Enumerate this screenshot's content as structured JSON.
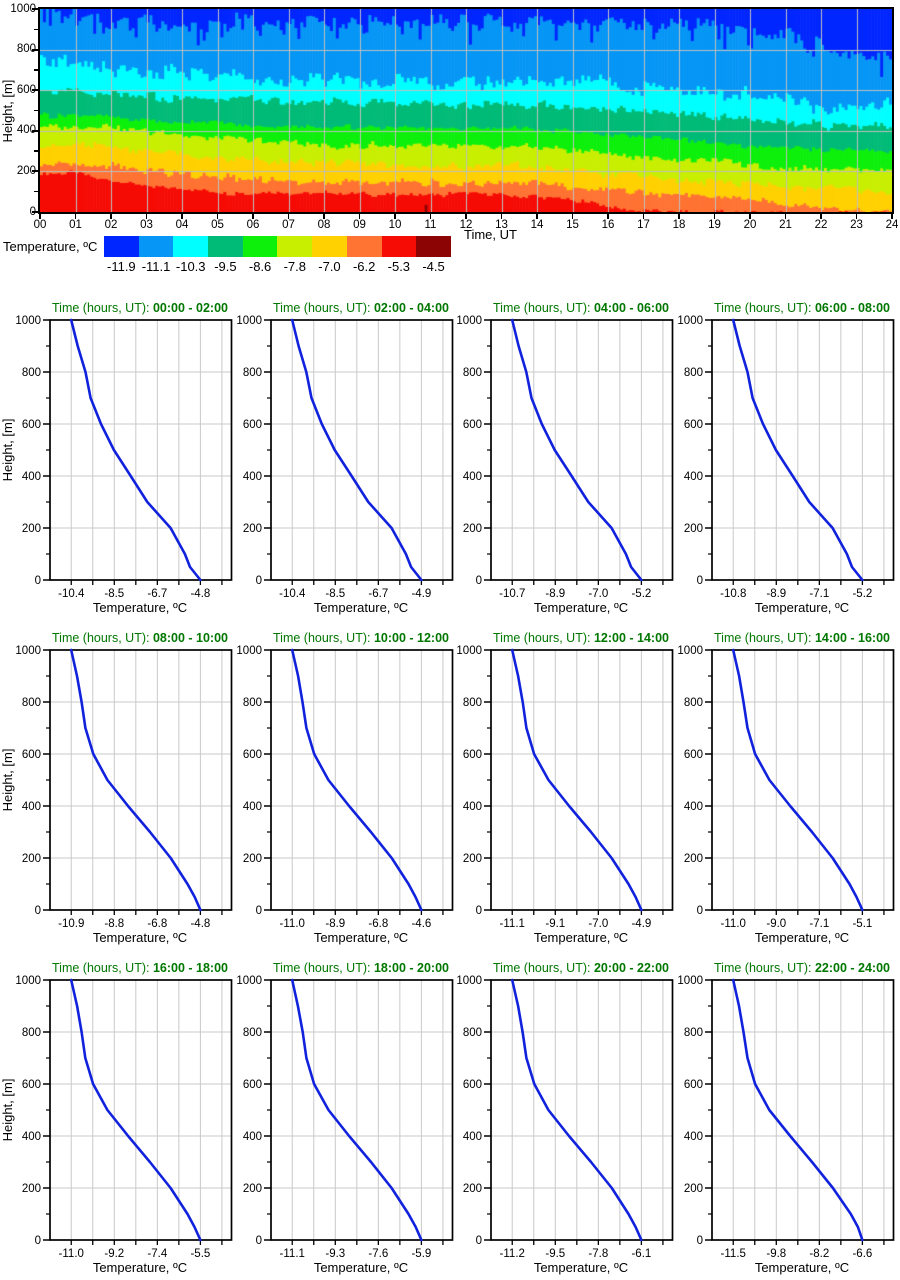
{
  "colors": {
    "profile_line": "#1122dd",
    "title_green": "#007700",
    "grid": "#c9c9c9",
    "axis": "#000000",
    "background": "#ffffff"
  },
  "shared": {
    "profile_title_prefix": "Time (hours, UT):",
    "profile_heights": [
      1000,
      900,
      800,
      700,
      600,
      500,
      400,
      300,
      200,
      100,
      50,
      0
    ],
    "profile_y_ticks": [
      "0",
      "200",
      "400",
      "600",
      "800",
      "1000"
    ]
  },
  "chart_data": [
    {
      "type": "heatmap",
      "xlabel": "Time, UT",
      "ylabel": "Height, [m]",
      "legend_title": "Temperature, ºC",
      "xlim": [
        0,
        24
      ],
      "ylim": [
        0,
        1000
      ],
      "x_ticks": [
        "00",
        "01",
        "02",
        "03",
        "04",
        "05",
        "06",
        "07",
        "08",
        "09",
        "10",
        "11",
        "12",
        "13",
        "14",
        "15",
        "16",
        "17",
        "18",
        "19",
        "20",
        "21",
        "22",
        "23",
        "24"
      ],
      "y_ticks": [
        "0",
        "200",
        "400",
        "600",
        "800",
        "1000"
      ],
      "legend_values": [
        "-11.9",
        "-11.1",
        "-10.3",
        "-9.5",
        "-8.6",
        "-7.8",
        "-7.0",
        "-6.2",
        "-5.3",
        "-4.5"
      ],
      "colors": [
        "#0026ff",
        "#0696f5",
        "#00ffff",
        "#00bb77",
        "#0cf00c",
        "#c8ee00",
        "#ffd100",
        "#ff7333",
        "#f60b05",
        "#8c0404"
      ],
      "isotherm_temps": [
        -6.2,
        -7.0,
        -7.8,
        -8.6,
        -9.5,
        -10.3,
        -11.1,
        -11.9
      ],
      "hours": [
        0,
        1,
        2,
        3,
        4,
        5,
        6,
        7,
        8,
        9,
        10,
        11,
        12,
        13,
        14,
        15,
        16,
        17,
        18,
        19,
        20,
        21,
        22,
        23,
        24
      ],
      "isotherm_heights_by_hour": [
        [
          200,
          195,
          155,
          130,
          110,
          100,
          90,
          95,
          95,
          90,
          90,
          88,
          90,
          85,
          80,
          60,
          30,
          5,
          0,
          0,
          0,
          0,
          0,
          0,
          0
        ],
        [
          240,
          235,
          230,
          205,
          185,
          175,
          165,
          155,
          150,
          150,
          150,
          148,
          145,
          148,
          150,
          120,
          110,
          95,
          88,
          75,
          60,
          45,
          20,
          8,
          2
        ],
        [
          335,
          330,
          330,
          305,
          290,
          270,
          255,
          250,
          245,
          242,
          240,
          235,
          230,
          230,
          230,
          205,
          190,
          175,
          160,
          150,
          140,
          130,
          120,
          112,
          105
        ],
        [
          420,
          420,
          420,
          400,
          380,
          365,
          350,
          340,
          332,
          330,
          330,
          325,
          320,
          320,
          320,
          305,
          290,
          275,
          260,
          248,
          235,
          225,
          215,
          210,
          205
        ],
        [
          480,
          475,
          470,
          455,
          445,
          437,
          430,
          425,
          420,
          420,
          420,
          415,
          410,
          410,
          410,
          400,
          390,
          375,
          360,
          345,
          330,
          320,
          310,
          305,
          300
        ],
        [
          600,
          590,
          580,
          570,
          560,
          557,
          555,
          550,
          545,
          545,
          545,
          538,
          530,
          530,
          530,
          525,
          520,
          505,
          490,
          475,
          460,
          445,
          430,
          425,
          420
        ],
        [
          780,
          740,
          700,
          690,
          680,
          670,
          660,
          655,
          650,
          645,
          640,
          640,
          640,
          650,
          660,
          650,
          640,
          620,
          600,
          585,
          570,
          550,
          530,
          525,
          520
        ],
        [
          995,
          960,
          940,
          940,
          940,
          935,
          930,
          935,
          940,
          935,
          930,
          930,
          930,
          930,
          930,
          928,
          925,
          922,
          920,
          910,
          900,
          860,
          820,
          780,
          770
        ]
      ],
      "noise_amp": [
        12,
        18,
        20,
        18,
        14,
        22,
        40,
        45
      ],
      "darkred_spike": {
        "hour": 10.9,
        "height": 35
      }
    },
    {
      "type": "line",
      "time_range": "00:00 - 02:00",
      "xlabel": "Temperature, ºC",
      "ylabel": "Height, [m]",
      "x_ticks": [
        "-10.4",
        "-8.5",
        "-6.7",
        "-4.8"
      ],
      "temps": [
        -10.4,
        -10.12,
        -9.78,
        -9.56,
        -9.11,
        -8.55,
        -7.82,
        -7.1,
        -6.09,
        -5.47,
        -5.25,
        -4.8
      ]
    },
    {
      "type": "line",
      "time_range": "02:00 - 04:00",
      "xlabel": "Temperature, ºC",
      "ylabel": "",
      "x_ticks": [
        "-10.4",
        "-8.5",
        "-6.7",
        "-4.9"
      ],
      "temps": [
        -10.4,
        -10.13,
        -9.8,
        -9.58,
        -9.14,
        -8.59,
        -7.87,
        -7.16,
        -6.17,
        -5.56,
        -5.34,
        -4.9
      ]
    },
    {
      "type": "line",
      "time_range": "04:00 - 06:00",
      "xlabel": "Temperature, ºC",
      "ylabel": "",
      "x_ticks": [
        "-10.7",
        "-8.9",
        "-7.0",
        "-5.2"
      ],
      "temps": [
        -10.7,
        -10.43,
        -10.1,
        -9.88,
        -9.44,
        -8.89,
        -8.17,
        -7.46,
        -6.47,
        -5.86,
        -5.64,
        -5.2
      ]
    },
    {
      "type": "line",
      "time_range": "06:00 - 08:00",
      "xlabel": "Temperature, ºC",
      "ylabel": "",
      "x_ticks": [
        "-10.8",
        "-8.9",
        "-7.1",
        "-5.2"
      ],
      "temps": [
        -10.8,
        -10.52,
        -10.18,
        -9.96,
        -9.51,
        -8.95,
        -8.22,
        -7.5,
        -6.49,
        -5.87,
        -5.65,
        -5.2
      ]
    },
    {
      "type": "line",
      "time_range": "08:00 - 10:00",
      "xlabel": "Temperature, ºC",
      "ylabel": "Height, [m]",
      "x_ticks": [
        "-10.9",
        "-8.8",
        "-6.8",
        "-4.8"
      ],
      "temps": [
        -10.9,
        -10.63,
        -10.41,
        -10.23,
        -9.86,
        -9.19,
        -8.22,
        -7.18,
        -6.2,
        -5.41,
        -5.07,
        -4.8
      ]
    },
    {
      "type": "line",
      "time_range": "10:00 - 12:00",
      "xlabel": "Temperature, ºC",
      "ylabel": "",
      "x_ticks": [
        "-11.0",
        "-8.9",
        "-6.8",
        "-4.6"
      ],
      "temps": [
        -11.0,
        -10.71,
        -10.49,
        -10.3,
        -9.91,
        -9.21,
        -8.18,
        -7.1,
        -6.07,
        -5.24,
        -4.89,
        -4.6
      ]
    },
    {
      "type": "line",
      "time_range": "12:00 - 14:00",
      "xlabel": "Temperature, ºC",
      "ylabel": "",
      "x_ticks": [
        "-11.1",
        "-9.1",
        "-7.0",
        "-4.9"
      ],
      "temps": [
        -11.1,
        -10.82,
        -10.6,
        -10.42,
        -10.05,
        -9.36,
        -8.37,
        -7.32,
        -6.33,
        -5.52,
        -5.18,
        -4.9
      ]
    },
    {
      "type": "line",
      "time_range": "14:00 - 16:00",
      "xlabel": "Temperature, ºC",
      "ylabel": "",
      "x_ticks": [
        "-11.0",
        "-9.0",
        "-7.1",
        "-5.1"
      ],
      "temps": [
        -11.0,
        -10.73,
        -10.53,
        -10.35,
        -10.0,
        -9.35,
        -8.4,
        -7.4,
        -6.46,
        -5.69,
        -5.37,
        -5.1
      ]
    },
    {
      "type": "line",
      "time_range": "16:00 - 18:00",
      "xlabel": "Temperature, ºC",
      "ylabel": "Height, [m]",
      "x_ticks": [
        "-11.0",
        "-9.2",
        "-7.4",
        "-5.5"
      ],
      "temps": [
        -11.0,
        -10.75,
        -10.56,
        -10.4,
        -10.07,
        -9.46,
        -8.58,
        -7.65,
        -6.77,
        -6.05,
        -5.75,
        -5.5
      ]
    },
    {
      "type": "line",
      "time_range": "18:00 - 20:00",
      "xlabel": "Temperature, ºC",
      "ylabel": "",
      "x_ticks": [
        "-11.1",
        "-9.3",
        "-7.6",
        "-5.9"
      ],
      "temps": [
        -11.1,
        -10.87,
        -10.68,
        -10.53,
        -10.22,
        -9.64,
        -8.81,
        -7.93,
        -7.1,
        -6.42,
        -6.13,
        -5.9
      ]
    },
    {
      "type": "line",
      "time_range": "20:00 - 22:00",
      "xlabel": "Temperature, ºC",
      "ylabel": "",
      "x_ticks": [
        "-11.2",
        "-9.5",
        "-7.8",
        "-6.1"
      ],
      "temps": [
        -11.2,
        -10.97,
        -10.79,
        -10.64,
        -10.33,
        -9.77,
        -8.96,
        -8.09,
        -7.27,
        -6.61,
        -6.33,
        -6.1
      ]
    },
    {
      "type": "line",
      "time_range": "22:00 - 24:00",
      "xlabel": "Temperature, ºC",
      "ylabel": "",
      "x_ticks": [
        "-11.5",
        "-9.8",
        "-8.2",
        "-6.6"
      ],
      "temps": [
        -11.5,
        -11.28,
        -11.11,
        -10.96,
        -10.67,
        -10.13,
        -9.34,
        -8.51,
        -7.72,
        -7.04,
        -6.77,
        -6.6
      ]
    }
  ]
}
